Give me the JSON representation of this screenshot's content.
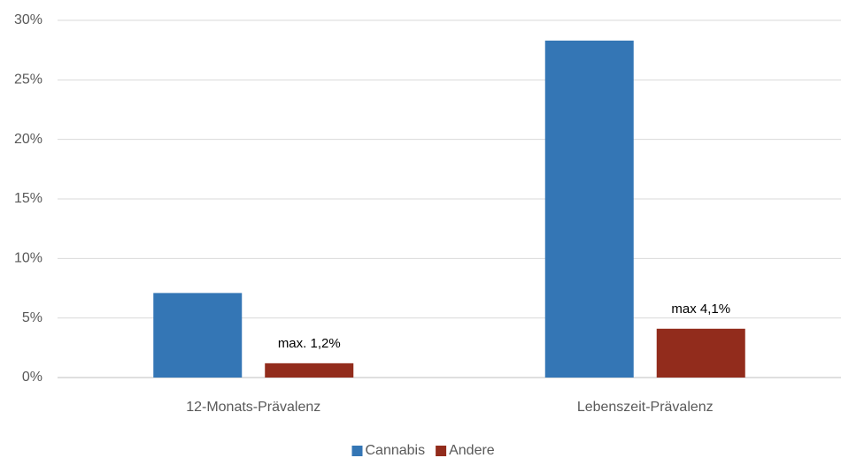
{
  "chart_data": {
    "type": "bar",
    "categories": [
      "12-Monats-Prävalenz",
      "Lebenszeit-Prävalenz"
    ],
    "series": [
      {
        "name": "Cannabis",
        "color": "#3476b5",
        "values": [
          7.1,
          28.3
        ]
      },
      {
        "name": "Andere",
        "color": "#922c1c",
        "values": [
          1.2,
          4.1
        ],
        "value_labels": [
          "max. 1,2%",
          "max 4,1%"
        ]
      }
    ],
    "ylim": [
      0,
      30
    ],
    "yticks": [
      {
        "value": 0,
        "label": "0%"
      },
      {
        "value": 5,
        "label": "5%"
      },
      {
        "value": 10,
        "label": "10%"
      },
      {
        "value": 15,
        "label": "15%"
      },
      {
        "value": 20,
        "label": "20%"
      },
      {
        "value": 25,
        "label": "25%"
      },
      {
        "value": 30,
        "label": "30%"
      }
    ],
    "grid": true,
    "legend": "bottom"
  }
}
